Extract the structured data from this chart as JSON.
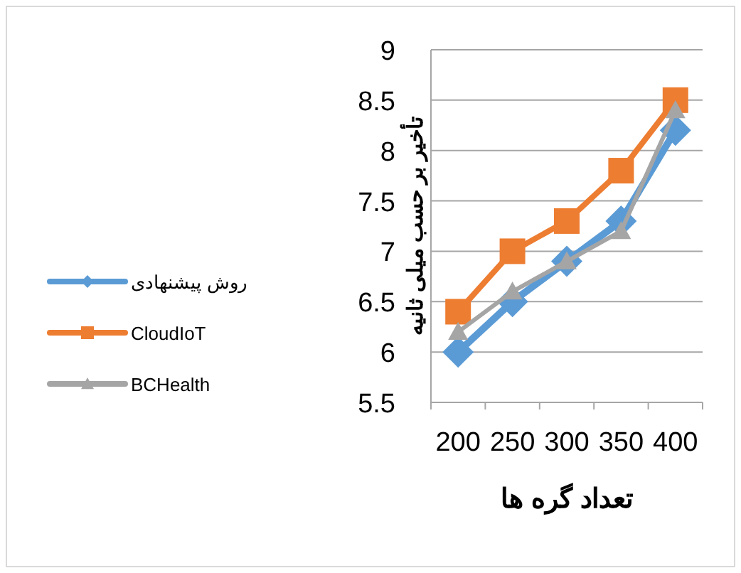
{
  "chart_data": {
    "type": "line",
    "xlabel": "تعداد گره ها",
    "ylabel": "تأخیر بر حسب میلی ثانیه",
    "categories": [
      "200",
      "250",
      "300",
      "350",
      "400"
    ],
    "series": [
      {
        "name": "روش پیشنهادی",
        "color": "#5b9bd5",
        "marker": "diamond",
        "values": [
          6,
          6.5,
          6.9,
          7.3,
          8.2
        ]
      },
      {
        "name": "CloudIoT",
        "color": "#ed7d31",
        "marker": "square",
        "values": [
          6.4,
          7,
          7.3,
          7.8,
          8.5
        ]
      },
      {
        "name": "BCHealth",
        "color": "#a5a5a5",
        "marker": "triangle",
        "values": [
          6.2,
          6.6,
          6.9,
          7.2,
          8.4
        ]
      }
    ],
    "ylim": [
      5.5,
      9
    ],
    "yticks": [
      5.5,
      6,
      6.5,
      7,
      7.5,
      8,
      8.5,
      9
    ],
    "grid": "y",
    "legend": "left",
    "line_style": "solid"
  }
}
